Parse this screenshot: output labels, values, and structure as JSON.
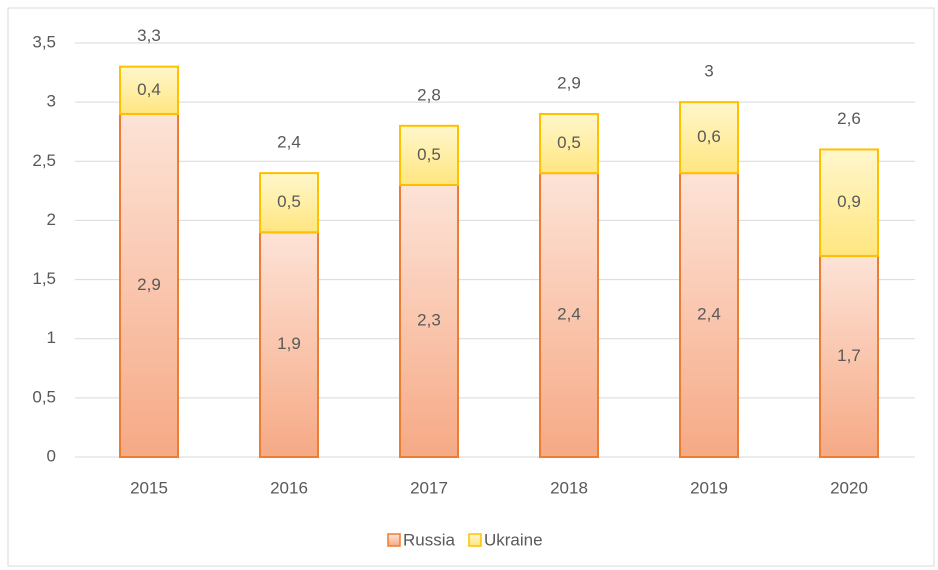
{
  "chart_data": {
    "type": "stacked_bar",
    "categories": [
      "2015",
      "2016",
      "2017",
      "2018",
      "2019",
      "2020"
    ],
    "series": [
      {
        "name": "Russia",
        "color": "#ed7d31",
        "values": [
          2.9,
          1.9,
          2.3,
          2.4,
          2.4,
          1.7
        ],
        "value_labels": [
          "2,9",
          "1,9",
          "2,3",
          "2,4",
          "2,4",
          "1,7"
        ]
      },
      {
        "name": "Ukraine",
        "color": "#ffc000",
        "values": [
          0.4,
          0.5,
          0.5,
          0.5,
          0.6,
          0.9
        ],
        "value_labels": [
          "0,4",
          "0,5",
          "0,5",
          "0,5",
          "0,6",
          "0,9"
        ]
      }
    ],
    "totals": [
      3.3,
      2.4,
      2.8,
      2.9,
      3,
      2.6
    ],
    "total_labels": [
      "3,3",
      "2,4",
      "2,8",
      "2,9",
      "3",
      "2,6"
    ],
    "ylim": [
      0,
      3.5
    ],
    "yticks": [
      0,
      {
        "value": 0.5,
        "label": "0,5"
      },
      1,
      {
        "value": 1.5,
        "label": "1,5"
      },
      2,
      {
        "value": 2.5,
        "label": "2,5"
      },
      3,
      {
        "value": 3.5,
        "label": "3,5"
      }
    ],
    "grid": true,
    "legend": "bottom"
  }
}
